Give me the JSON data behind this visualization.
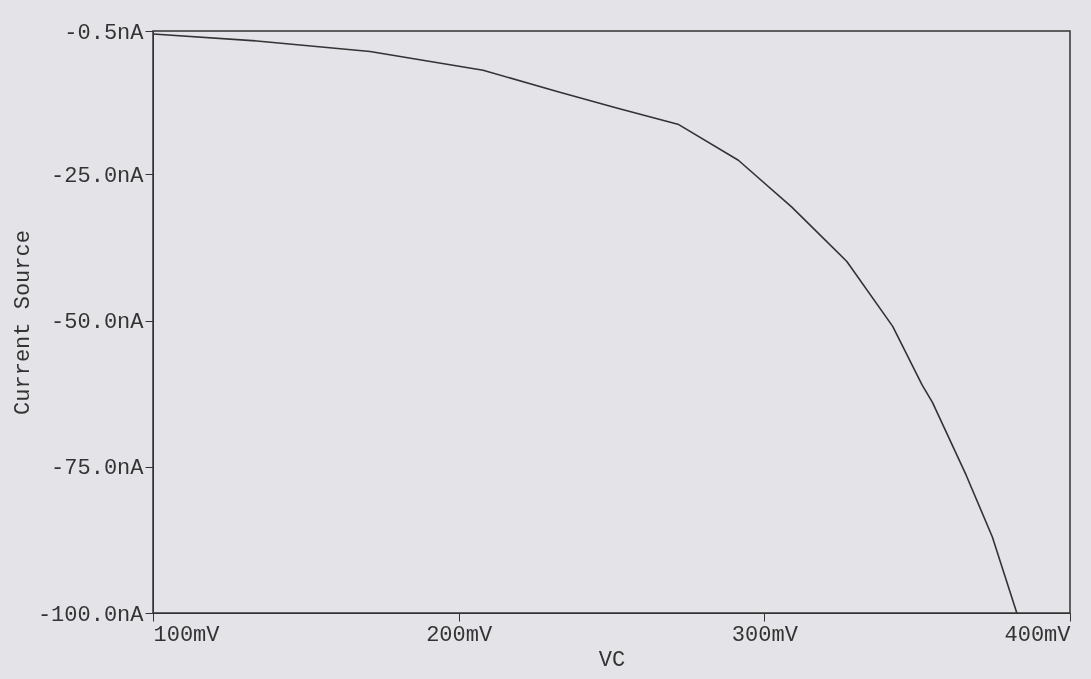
{
  "chart_data": {
    "type": "line",
    "xlabel": "VC",
    "ylabel": "Current Source",
    "x": [
      100,
      134,
      171,
      208,
      232.5,
      252,
      272,
      291.5,
      309,
      327,
      342,
      351.6,
      355,
      366,
      374.6,
      382.6
    ],
    "series": [
      {
        "color": "#333333",
        "values": [
          -1.0,
          -2.2,
          -4.0,
          -7.2,
          -10.9,
          -13.7,
          -16.5,
          -22.6,
          -30.6,
          -39.9,
          -51,
          -61,
          -64,
          -76.4,
          -87,
          -100
        ]
      }
    ],
    "xlim": [
      100,
      400
    ],
    "ylim": [
      -100,
      -0.5
    ],
    "xticks": [
      {
        "value": 100,
        "label": "100mV"
      },
      {
        "value": 200,
        "label": "200mV"
      },
      {
        "value": 300,
        "label": "300mV"
      },
      {
        "value": 400,
        "label": "400mV"
      }
    ],
    "yticks": [
      {
        "value": -100,
        "label": "-100.0nA"
      },
      {
        "value": -75,
        "label": "-75.0nA"
      },
      {
        "value": -50,
        "label": "-50.0nA"
      },
      {
        "value": -25,
        "label": "-25.0nA"
      },
      {
        "value": -0.5,
        "label": "-0.5nA"
      }
    ],
    "grid": false,
    "line_style": "solid",
    "marker": "none"
  }
}
